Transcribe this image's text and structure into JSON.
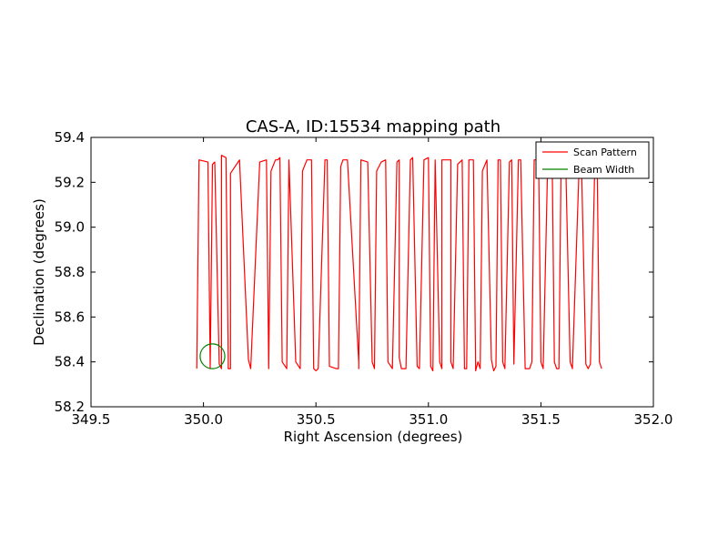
{
  "chart_data": {
    "type": "line",
    "title": "CAS-A, ID:15534 mapping path",
    "xlabel": "Right Ascension (degrees)",
    "ylabel": "Declination (degrees)",
    "xlim": [
      349.5,
      352.0
    ],
    "ylim": [
      58.2,
      59.4
    ],
    "xticks": [
      349.5,
      350.0,
      350.5,
      351.0,
      351.5,
      352.0
    ],
    "xtick_labels": [
      "349.5",
      "350.0",
      "350.5",
      "351.0",
      "351.5",
      "352.0"
    ],
    "yticks": [
      58.2,
      58.4,
      58.6,
      58.8,
      59.0,
      59.2,
      59.4
    ],
    "ytick_labels": [
      "58.2",
      "58.4",
      "58.6",
      "58.8",
      "59.0",
      "59.2",
      "59.4"
    ],
    "grid": false,
    "legend_position": "top-right",
    "series": [
      {
        "name": "Scan Pattern",
        "color": "#ff0000",
        "mark": "line",
        "x": [
          349.97,
          349.98,
          350.02,
          350.03,
          350.04,
          350.05,
          350.07,
          350.08,
          350.08,
          350.1,
          350.11,
          350.11,
          350.12,
          350.12,
          350.16,
          350.2,
          350.21,
          350.21,
          350.25,
          350.28,
          350.29,
          350.3,
          350.32,
          350.33,
          350.34,
          350.35,
          350.37,
          350.38,
          350.38,
          350.41,
          350.43,
          350.43,
          350.44,
          350.46,
          350.48,
          350.49,
          350.5,
          350.51,
          350.54,
          350.55,
          350.56,
          350.59,
          350.6,
          350.61,
          350.62,
          350.64,
          350.69,
          350.69,
          350.7,
          350.73,
          350.75,
          350.76,
          350.77,
          350.79,
          350.81,
          350.82,
          350.84,
          350.86,
          350.87,
          350.87,
          350.88,
          350.9,
          350.92,
          350.93,
          350.95,
          350.96,
          350.98,
          351.0,
          351.01,
          351.02,
          351.03,
          351.05,
          351.06,
          351.06,
          351.1,
          351.1,
          351.11,
          351.13,
          351.15,
          351.15,
          351.16,
          351.17,
          351.18,
          351.2,
          351.21,
          351.22,
          351.23,
          351.24,
          351.26,
          351.28,
          351.29,
          351.3,
          351.31,
          351.32,
          351.33,
          351.34,
          351.36,
          351.37,
          351.38,
          351.4,
          351.41,
          351.43,
          351.45,
          351.46,
          351.47,
          351.49,
          351.5,
          351.51,
          351.53,
          351.55,
          351.56,
          351.57,
          351.58,
          351.59,
          351.61,
          351.63,
          351.64,
          351.67,
          351.68,
          351.7,
          351.71,
          351.72,
          351.74,
          351.75,
          351.76,
          351.77
        ],
        "y": [
          58.37,
          59.3,
          59.29,
          58.37,
          59.28,
          59.29,
          58.39,
          58.37,
          59.32,
          59.31,
          58.41,
          58.37,
          58.37,
          59.24,
          59.3,
          58.41,
          58.37,
          58.37,
          59.29,
          59.3,
          58.37,
          59.25,
          59.3,
          59.3,
          59.31,
          58.4,
          58.37,
          59.29,
          59.3,
          58.4,
          58.37,
          58.37,
          59.25,
          59.3,
          59.3,
          58.37,
          58.36,
          58.37,
          59.3,
          59.3,
          58.38,
          58.37,
          58.37,
          59.27,
          59.3,
          59.3,
          58.4,
          58.37,
          59.3,
          59.29,
          58.4,
          58.37,
          59.25,
          59.29,
          59.3,
          58.4,
          58.37,
          59.29,
          59.3,
          58.42,
          58.37,
          58.37,
          59.3,
          59.31,
          58.38,
          58.37,
          59.3,
          59.31,
          58.38,
          58.36,
          59.3,
          58.4,
          58.37,
          59.3,
          59.3,
          58.4,
          58.37,
          59.28,
          59.3,
          59.3,
          58.37,
          58.37,
          59.3,
          59.3,
          58.36,
          58.4,
          58.37,
          59.25,
          59.3,
          58.41,
          58.36,
          58.38,
          59.3,
          59.3,
          58.4,
          58.37,
          59.29,
          59.3,
          58.39,
          59.3,
          59.3,
          58.37,
          58.37,
          58.4,
          59.3,
          59.3,
          58.4,
          58.37,
          59.28,
          59.3,
          58.4,
          58.37,
          58.37,
          59.3,
          59.3,
          58.4,
          58.37,
          59.27,
          59.3,
          58.39,
          58.37,
          58.39,
          59.29,
          59.3,
          58.4,
          58.37
        ]
      },
      {
        "name": "Beam Width",
        "color": "#008000",
        "mark": "circle",
        "center": [
          350.04,
          58.425
        ],
        "radius": 0.055
      }
    ]
  }
}
